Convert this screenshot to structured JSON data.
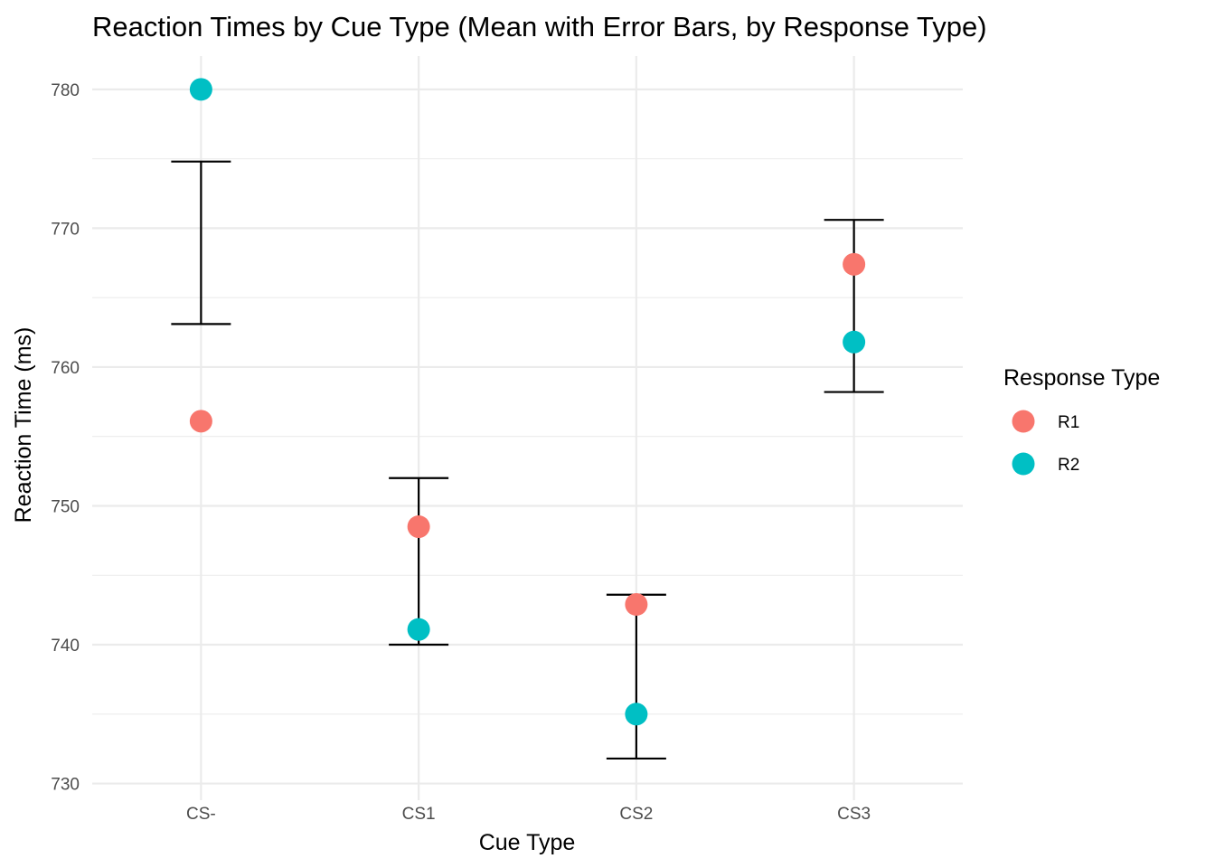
{
  "chart_data": {
    "type": "scatter",
    "title": "Reaction Times by Cue Type (Mean with Error Bars, by Response Type)",
    "xlabel": "Cue Type",
    "ylabel": "Reaction Time (ms)",
    "categories": [
      "CS-",
      "CS1",
      "CS2",
      "CS3"
    ],
    "ylim": [
      728.8,
      782.4
    ],
    "yticks": [
      730,
      740,
      750,
      760,
      770,
      780
    ],
    "grid": true,
    "legend": {
      "title": "Response Type",
      "placement": "right"
    },
    "series": [
      {
        "name": "R1",
        "color": "#F8766D",
        "values": [
          756.1,
          748.5,
          742.9,
          767.4
        ]
      },
      {
        "name": "R2",
        "color": "#00BFC4",
        "values": [
          780.0,
          741.1,
          735.0,
          761.8
        ]
      }
    ],
    "error_bars": [
      {
        "category": "CS-",
        "low": 763.1,
        "high": 774.8
      },
      {
        "category": "CS1",
        "low": 740.0,
        "high": 752.0
      },
      {
        "category": "CS2",
        "low": 731.8,
        "high": 743.6
      },
      {
        "category": "CS3",
        "low": 758.2,
        "high": 770.6
      }
    ]
  }
}
